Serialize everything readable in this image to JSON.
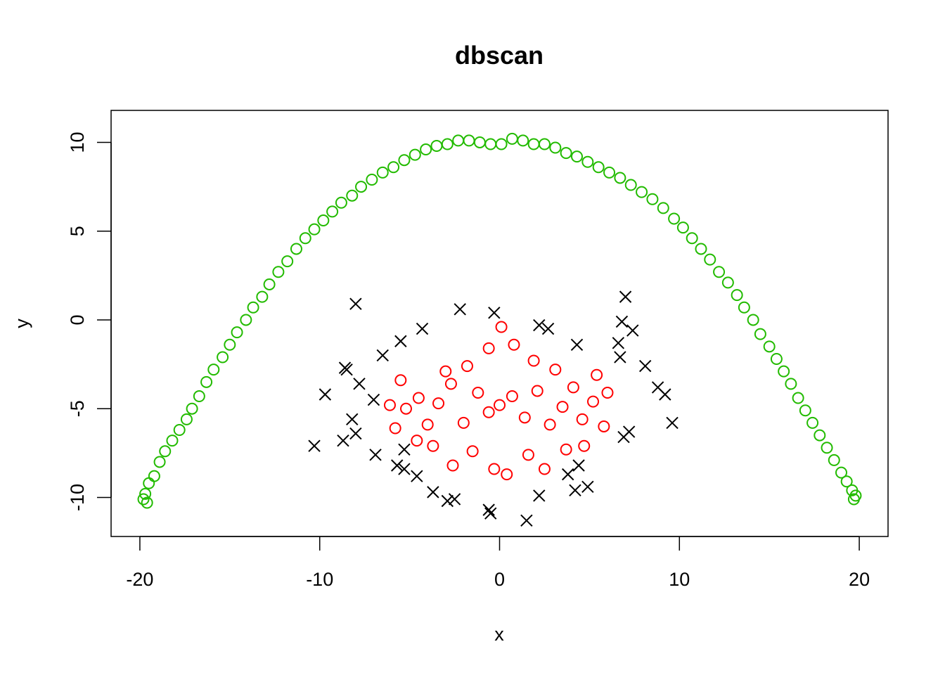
{
  "chart_data": {
    "type": "scatter",
    "title": "dbscan",
    "xlabel": "x",
    "ylabel": "y",
    "xlim": [
      -21.6,
      21.6
    ],
    "ylim": [
      -12.2,
      11.8
    ],
    "xticks": [
      -20,
      -10,
      0,
      10,
      20
    ],
    "yticks": [
      -10,
      -5,
      0,
      5,
      10
    ],
    "xtick_labels": [
      "-20",
      "-10",
      "0",
      "10",
      "20"
    ],
    "ytick_labels": [
      "-10",
      "-5",
      "0",
      "5",
      "10"
    ],
    "grid": false,
    "legend": "none",
    "colors": {
      "arc": "#22bb00",
      "blob": "#ff0000",
      "noise": "#000000",
      "axis": "#000000"
    },
    "series": [
      {
        "color": "#22bb00",
        "marker": "circle",
        "points": [
          [
            -19.8,
            -10.1
          ],
          [
            -19.7,
            -9.8
          ],
          [
            -19.5,
            -9.2
          ],
          [
            -19.2,
            -8.8
          ],
          [
            -18.9,
            -8.0
          ],
          [
            -18.6,
            -7.4
          ],
          [
            -18.2,
            -6.8
          ],
          [
            -17.8,
            -6.2
          ],
          [
            -17.4,
            -5.6
          ],
          [
            -17.1,
            -5.0
          ],
          [
            -16.7,
            -4.3
          ],
          [
            -16.3,
            -3.5
          ],
          [
            -15.9,
            -2.8
          ],
          [
            -15.4,
            -2.1
          ],
          [
            -15.0,
            -1.4
          ],
          [
            -14.6,
            -0.7
          ],
          [
            -14.1,
            0.0
          ],
          [
            -13.7,
            0.7
          ],
          [
            -13.2,
            1.3
          ],
          [
            -12.8,
            2.0
          ],
          [
            -12.3,
            2.7
          ],
          [
            -11.8,
            3.3
          ],
          [
            -11.3,
            4.0
          ],
          [
            -10.8,
            4.6
          ],
          [
            -10.3,
            5.1
          ],
          [
            -9.8,
            5.6
          ],
          [
            -9.3,
            6.1
          ],
          [
            -8.8,
            6.6
          ],
          [
            -8.2,
            7.0
          ],
          [
            -7.7,
            7.5
          ],
          [
            -7.1,
            7.9
          ],
          [
            -6.5,
            8.3
          ],
          [
            -5.9,
            8.6
          ],
          [
            -5.3,
            9.0
          ],
          [
            -4.7,
            9.3
          ],
          [
            -4.1,
            9.6
          ],
          [
            -3.5,
            9.8
          ],
          [
            -2.9,
            9.9
          ],
          [
            -2.3,
            10.1
          ],
          [
            -1.7,
            10.1
          ],
          [
            -1.1,
            10.0
          ],
          [
            -0.5,
            9.9
          ],
          [
            0.1,
            9.9
          ],
          [
            0.7,
            10.2
          ],
          [
            1.3,
            10.1
          ],
          [
            1.9,
            9.9
          ],
          [
            2.5,
            9.9
          ],
          [
            3.1,
            9.7
          ],
          [
            3.7,
            9.4
          ],
          [
            4.3,
            9.2
          ],
          [
            4.9,
            8.9
          ],
          [
            5.5,
            8.6
          ],
          [
            6.1,
            8.3
          ],
          [
            6.7,
            8.0
          ],
          [
            7.3,
            7.6
          ],
          [
            7.9,
            7.2
          ],
          [
            8.5,
            6.8
          ],
          [
            9.1,
            6.3
          ],
          [
            9.7,
            5.7
          ],
          [
            10.2,
            5.2
          ],
          [
            10.7,
            4.6
          ],
          [
            11.2,
            4.0
          ],
          [
            11.7,
            3.4
          ],
          [
            12.2,
            2.7
          ],
          [
            12.7,
            2.1
          ],
          [
            13.2,
            1.4
          ],
          [
            13.6,
            0.7
          ],
          [
            14.1,
            0.0
          ],
          [
            14.5,
            -0.8
          ],
          [
            15.0,
            -1.5
          ],
          [
            15.4,
            -2.2
          ],
          [
            15.8,
            -2.9
          ],
          [
            16.2,
            -3.6
          ],
          [
            16.6,
            -4.4
          ],
          [
            17.0,
            -5.1
          ],
          [
            17.4,
            -5.8
          ],
          [
            17.8,
            -6.5
          ],
          [
            18.2,
            -7.2
          ],
          [
            18.6,
            -7.9
          ],
          [
            19.0,
            -8.6
          ],
          [
            19.3,
            -9.1
          ],
          [
            19.6,
            -9.6
          ],
          [
            19.8,
            -9.9
          ],
          [
            19.7,
            -10.1
          ],
          [
            -19.6,
            -10.3
          ]
        ]
      },
      {
        "color": "#ff0000",
        "marker": "circle",
        "points": [
          [
            0.0,
            -4.8
          ],
          [
            -0.6,
            -5.2
          ],
          [
            0.7,
            -4.3
          ],
          [
            -1.2,
            -4.1
          ],
          [
            1.4,
            -5.5
          ],
          [
            -2.0,
            -5.8
          ],
          [
            2.1,
            -4.0
          ],
          [
            -2.7,
            -3.6
          ],
          [
            2.8,
            -5.9
          ],
          [
            -3.4,
            -4.7
          ],
          [
            3.5,
            -4.9
          ],
          [
            -4.0,
            -5.9
          ],
          [
            4.1,
            -3.8
          ],
          [
            -4.5,
            -4.4
          ],
          [
            4.6,
            -5.6
          ],
          [
            -5.2,
            -5.0
          ],
          [
            5.2,
            -4.6
          ],
          [
            -5.8,
            -6.1
          ],
          [
            5.8,
            -6.0
          ],
          [
            -6.1,
            -4.8
          ],
          [
            6.0,
            -4.1
          ],
          [
            -1.5,
            -7.4
          ],
          [
            1.6,
            -7.6
          ],
          [
            -0.3,
            -8.4
          ],
          [
            0.4,
            -8.7
          ],
          [
            -2.6,
            -8.2
          ],
          [
            2.5,
            -8.4
          ],
          [
            -3.7,
            -7.1
          ],
          [
            3.7,
            -7.3
          ],
          [
            -1.8,
            -2.6
          ],
          [
            1.9,
            -2.3
          ],
          [
            -0.6,
            -1.6
          ],
          [
            0.8,
            -1.4
          ],
          [
            -3.0,
            -2.9
          ],
          [
            3.1,
            -2.8
          ],
          [
            -4.6,
            -6.8
          ],
          [
            4.7,
            -7.1
          ],
          [
            -5.5,
            -3.4
          ],
          [
            5.4,
            -3.1
          ],
          [
            0.1,
            -0.4
          ]
        ]
      },
      {
        "color": "#000000",
        "marker": "cross",
        "points": [
          [
            -8.0,
            0.9
          ],
          [
            -2.2,
            0.6
          ],
          [
            -0.3,
            0.4
          ],
          [
            -4.3,
            -0.5
          ],
          [
            2.2,
            -0.3
          ],
          [
            2.7,
            -0.5
          ],
          [
            7.0,
            1.3
          ],
          [
            6.8,
            -0.1
          ],
          [
            7.4,
            -0.6
          ],
          [
            -5.5,
            -1.2
          ],
          [
            -6.5,
            -2.0
          ],
          [
            -8.5,
            -2.8
          ],
          [
            -7.8,
            -3.6
          ],
          [
            -9.7,
            -4.2
          ],
          [
            -7.0,
            -4.5
          ],
          [
            -8.2,
            -5.6
          ],
          [
            -8.0,
            -6.4
          ],
          [
            -8.7,
            -6.8
          ],
          [
            -10.3,
            -7.1
          ],
          [
            -6.9,
            -7.6
          ],
          [
            -5.7,
            -8.2
          ],
          [
            -4.6,
            -8.8
          ],
          [
            -3.7,
            -9.7
          ],
          [
            -2.9,
            -10.2
          ],
          [
            -0.5,
            -10.9
          ],
          [
            1.5,
            -11.3
          ],
          [
            2.2,
            -9.9
          ],
          [
            4.2,
            -9.6
          ],
          [
            4.9,
            -9.4
          ],
          [
            4.4,
            -8.2
          ],
          [
            3.8,
            -8.7
          ],
          [
            6.9,
            -6.6
          ],
          [
            7.2,
            -6.3
          ],
          [
            8.1,
            -2.6
          ],
          [
            8.8,
            -3.8
          ],
          [
            9.2,
            -4.2
          ],
          [
            9.6,
            -5.8
          ],
          [
            6.6,
            -1.3
          ],
          [
            6.7,
            -2.1
          ],
          [
            4.3,
            -1.4
          ],
          [
            -5.3,
            -7.3
          ],
          [
            -2.5,
            -10.1
          ],
          [
            -5.3,
            -8.4
          ],
          [
            -8.6,
            -2.7
          ],
          [
            -0.6,
            -10.7
          ]
        ]
      }
    ]
  }
}
